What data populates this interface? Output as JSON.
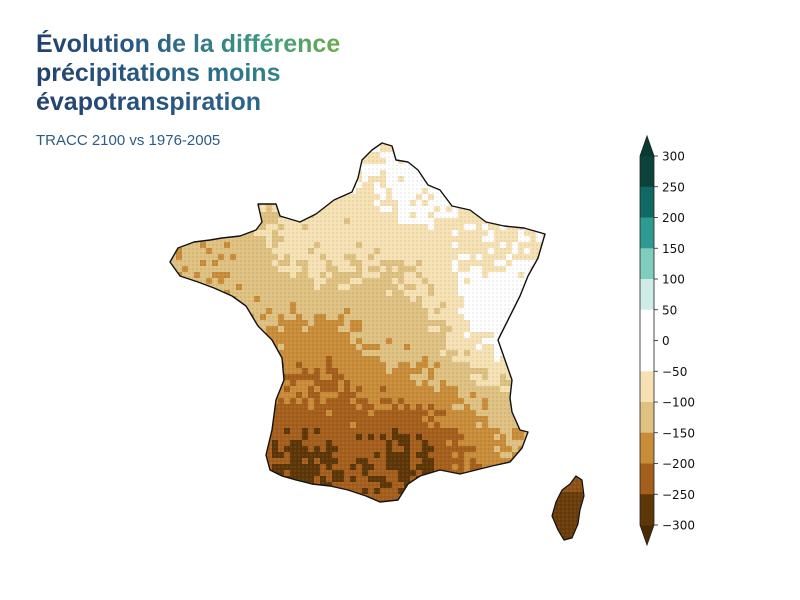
{
  "title_lines": [
    "Évolution de la différence",
    "précipitations moins",
    "évapotranspiration"
  ],
  "subtitle": "TRACC 2100 vs 1976-2005",
  "colorbar": {
    "ticks": [
      "300",
      "250",
      "200",
      "150",
      "100",
      "50",
      "0",
      "−50",
      "−100",
      "−150",
      "−200",
      "−250",
      "−300"
    ],
    "levels": [
      300,
      250,
      200,
      150,
      100,
      50,
      0,
      -50,
      -100,
      -150,
      -200,
      -250,
      -300
    ],
    "colors_top_to_bottom": [
      "#0d423b",
      "#0e6a62",
      "#2f9a8f",
      "#7fcdbd",
      "#cfece6",
      "#ffffff",
      "#ffffff",
      "#f6e1b4",
      "#dfc181",
      "#c98d3a",
      "#a55f1c",
      "#5e3708"
    ],
    "extend_top_color": "#063a33",
    "extend_bottom_color": "#4a2a05"
  },
  "map_regions": {
    "northwest": -75,
    "brittany": -140,
    "north": -25,
    "northeast": -60,
    "alps": 25,
    "center": -130,
    "southwest": -210,
    "south": -275,
    "corsica": -250
  }
}
